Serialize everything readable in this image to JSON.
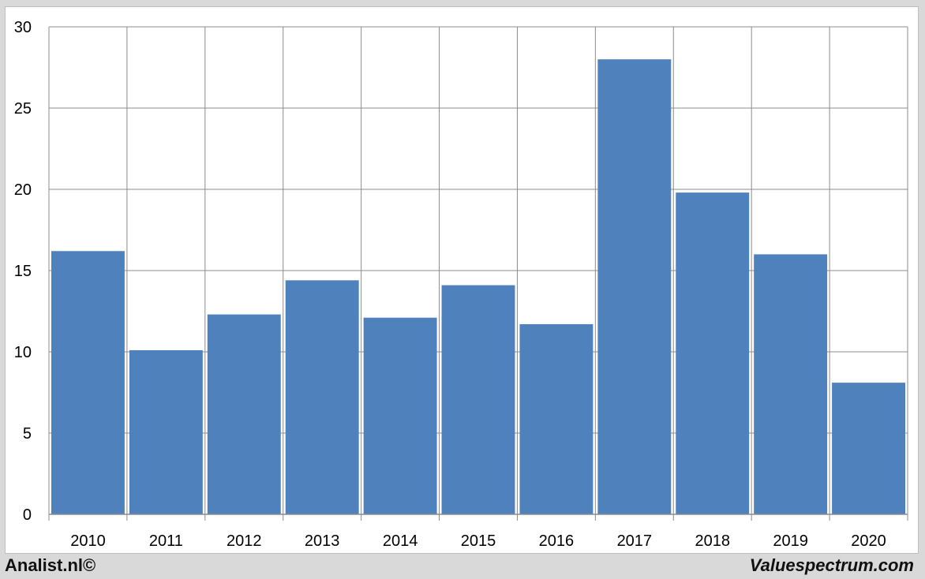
{
  "chart_data": {
    "type": "bar",
    "categories": [
      "2010",
      "2011",
      "2012",
      "2013",
      "2014",
      "2015",
      "2016",
      "2017",
      "2018",
      "2019",
      "2020"
    ],
    "values": [
      16.2,
      10.1,
      12.3,
      14.4,
      12.1,
      14.1,
      11.7,
      28.0,
      19.8,
      16.0,
      8.1
    ],
    "ylim": [
      0,
      30
    ],
    "yticks": [
      0,
      5,
      10,
      15,
      20,
      25,
      30
    ],
    "title": "",
    "xlabel": "",
    "ylabel": "",
    "grid": true,
    "bar_color": "#4f81bd",
    "grid_color": "#8c8c8c"
  },
  "footer": {
    "left": "Analist.nl©",
    "right": "Valuespectrum.com"
  }
}
